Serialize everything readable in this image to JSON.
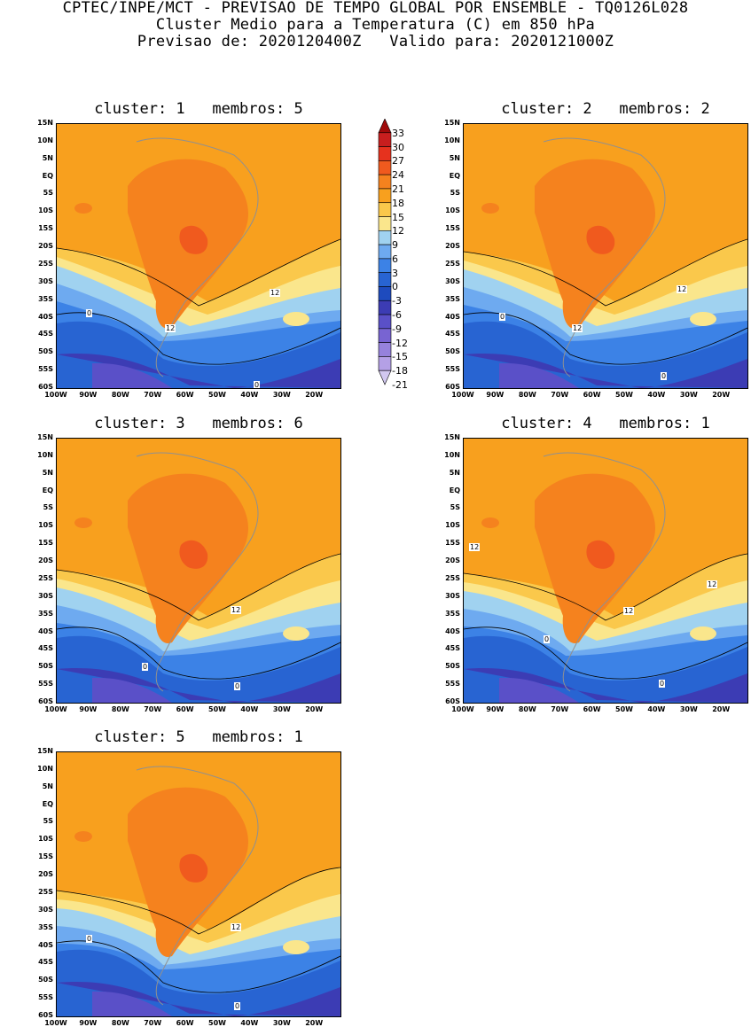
{
  "header": {
    "line1": "CPTEC/INPE/MCT - PREVISAO DE TEMPO GLOBAL POR ENSEMBLE - TQ0126L028",
    "line2": "Cluster Medio para a Temperatura (C) em 850 hPa",
    "line3": "Previsao de: 2020120400Z   Valido para: 2020121000Z"
  },
  "colorbar": {
    "levels": [
      "33",
      "30",
      "27",
      "24",
      "21",
      "18",
      "15",
      "12",
      "9",
      "6",
      "3",
      "0",
      "-3",
      "-6",
      "-9",
      "-12",
      "-15",
      "-18",
      "-21"
    ],
    "colors": [
      "#a00a0a",
      "#c81e1e",
      "#e6321e",
      "#f05a1e",
      "#f5821e",
      "#f8a01e",
      "#fac84b",
      "#fae68c",
      "#a0d2f0",
      "#6eaaf0",
      "#3c82e6",
      "#2864d2",
      "#1e4bbe",
      "#3c3cb4",
      "#5a50c8",
      "#7864d2",
      "#9682dc",
      "#b4a0e6",
      "#d2c8f0"
    ]
  },
  "axes": {
    "lat_labels": [
      "15N",
      "10N",
      "5N",
      "EQ",
      "5S",
      "10S",
      "15S",
      "20S",
      "25S",
      "30S",
      "35S",
      "40S",
      "45S",
      "50S",
      "55S",
      "60S"
    ],
    "lon_labels": [
      "100W",
      "90W",
      "80W",
      "70W",
      "60W",
      "50W",
      "40W",
      "30W",
      "20W"
    ]
  },
  "panels": [
    {
      "title": "cluster: 1   membros: 5",
      "contour_labels": [
        "12",
        "12",
        "0",
        "0"
      ]
    },
    {
      "title": "cluster: 2   membros: 2",
      "contour_labels": [
        "12",
        "12",
        "0",
        "0"
      ]
    },
    {
      "title": "cluster: 3   membros: 6",
      "contour_labels": [
        "12",
        "0",
        "0"
      ]
    },
    {
      "title": "cluster: 4   membros: 1",
      "contour_labels": [
        "12",
        "12",
        "12",
        "0",
        "0"
      ]
    },
    {
      "title": "cluster: 5   membros: 1",
      "contour_labels": [
        "12",
        "0",
        "0"
      ]
    }
  ]
}
